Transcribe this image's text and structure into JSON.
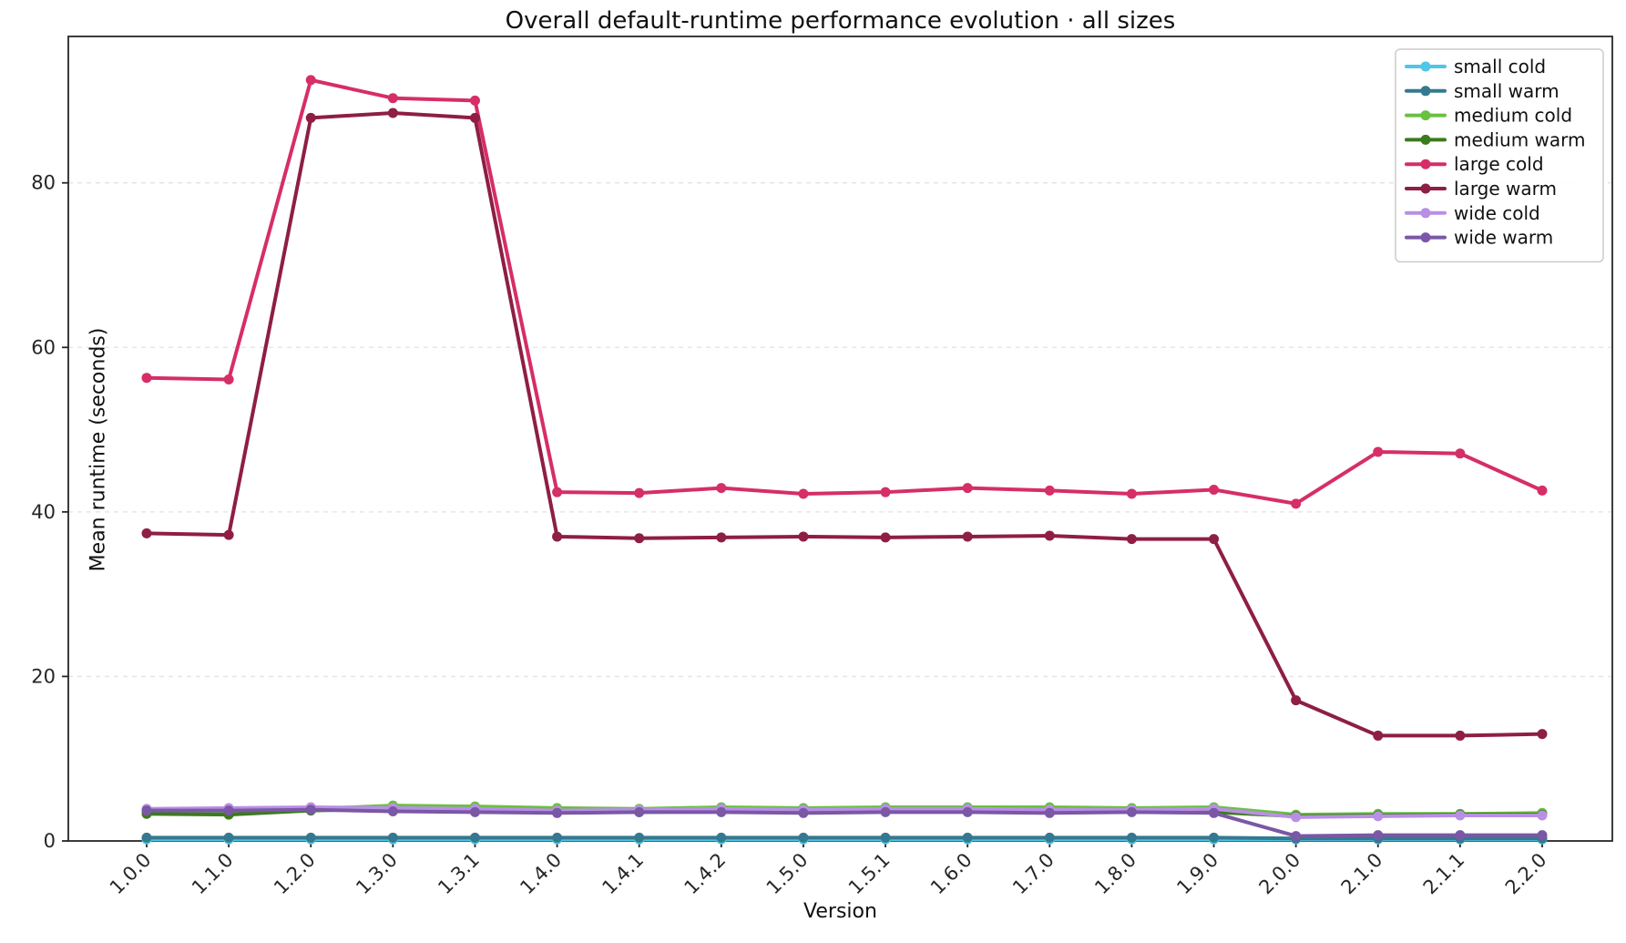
{
  "chart_data": {
    "type": "line",
    "title": "Overall default-runtime performance evolution · all sizes",
    "xlabel": "Version",
    "ylabel": "Mean runtime (seconds)",
    "categories": [
      "1.0.0",
      "1.1.0",
      "1.2.0",
      "1.3.0",
      "1.3.1",
      "1.4.0",
      "1.4.1",
      "1.4.2",
      "1.5.0",
      "1.5.1",
      "1.6.0",
      "1.7.0",
      "1.8.0",
      "1.9.0",
      "2.0.0",
      "2.1.0",
      "2.1.1",
      "2.2.0"
    ],
    "yticks": [
      0,
      20,
      40,
      60,
      80
    ],
    "ylim": [
      0,
      97.8
    ],
    "grid": "horizontal-dashed",
    "gridline_color": "#e2e2e2",
    "axis_color": "#262626",
    "legend_position": "upper right",
    "xtick_rotation": 45,
    "series": [
      {
        "name": "small cold",
        "color": "#4ec7e8",
        "values": [
          0.2,
          0.2,
          0.2,
          0.2,
          0.2,
          0.2,
          0.2,
          0.2,
          0.2,
          0.2,
          0.2,
          0.2,
          0.2,
          0.2,
          0.2,
          0.2,
          0.2,
          0.2
        ]
      },
      {
        "name": "small warm",
        "color": "#35798f",
        "values": [
          0.4,
          0.4,
          0.4,
          0.4,
          0.4,
          0.4,
          0.4,
          0.4,
          0.4,
          0.4,
          0.4,
          0.4,
          0.4,
          0.4,
          0.3,
          0.3,
          0.3,
          0.3
        ]
      },
      {
        "name": "medium cold",
        "color": "#69c140",
        "values": [
          3.5,
          3.4,
          3.9,
          4.3,
          4.2,
          4.0,
          3.9,
          4.1,
          4.0,
          4.1,
          4.1,
          4.1,
          4.0,
          4.1,
          3.2,
          3.3,
          3.3,
          3.4
        ]
      },
      {
        "name": "medium warm",
        "color": "#3c7a1e",
        "values": [
          3.3,
          3.2,
          3.7,
          3.9,
          3.8,
          3.6,
          3.5,
          3.6,
          3.6,
          3.6,
          3.6,
          3.6,
          3.6,
          3.5,
          3.0,
          3.1,
          3.2,
          3.2
        ]
      },
      {
        "name": "large cold",
        "color": "#d62e66",
        "values": [
          56.3,
          56.1,
          92.5,
          90.3,
          90.0,
          42.4,
          42.3,
          42.9,
          42.2,
          42.4,
          42.9,
          42.6,
          42.2,
          42.7,
          41.0,
          47.3,
          47.1,
          42.6
        ]
      },
      {
        "name": "large warm",
        "color": "#8e1e45",
        "values": [
          37.4,
          37.2,
          87.9,
          88.5,
          87.9,
          37.0,
          36.8,
          36.9,
          37.0,
          36.9,
          37.0,
          37.1,
          36.7,
          36.7,
          17.1,
          12.8,
          12.8,
          13.0
        ]
      },
      {
        "name": "wide cold",
        "color": "#b98fe5",
        "values": [
          3.9,
          4.0,
          4.1,
          4.0,
          3.9,
          3.7,
          3.8,
          3.9,
          3.8,
          3.9,
          3.9,
          3.8,
          3.8,
          3.9,
          2.9,
          3.0,
          3.1,
          3.1
        ]
      },
      {
        "name": "wide warm",
        "color": "#7a58a5",
        "values": [
          3.7,
          3.7,
          3.8,
          3.6,
          3.5,
          3.4,
          3.5,
          3.5,
          3.4,
          3.5,
          3.5,
          3.4,
          3.5,
          3.4,
          0.6,
          0.7,
          0.7,
          0.7
        ]
      }
    ]
  }
}
